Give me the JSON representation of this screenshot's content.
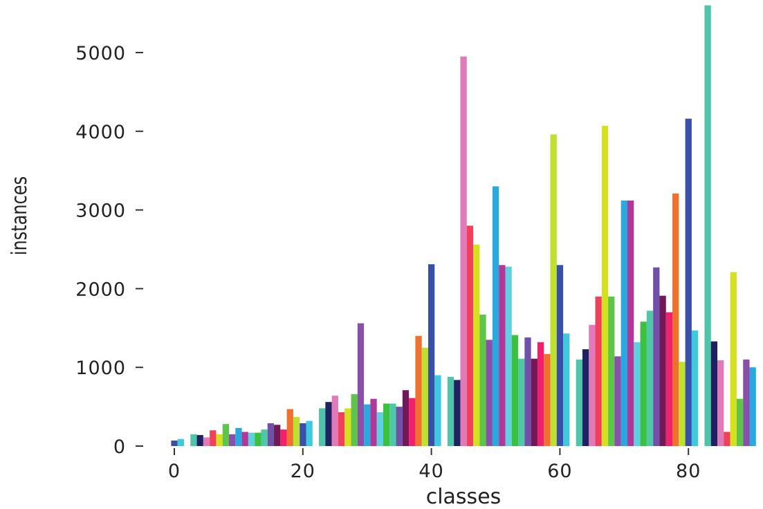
{
  "chart_data": {
    "type": "bar",
    "title": "",
    "xlabel": "classes",
    "ylabel": "instances",
    "xlim": [
      -1,
      91
    ],
    "ylim": [
      0,
      5600
    ],
    "xticks": [
      "0",
      "20",
      "40",
      "60",
      "80"
    ],
    "xtick_values": [
      0,
      20,
      40,
      60,
      80
    ],
    "yticks": [
      "0",
      "1000",
      "2000",
      "3000",
      "4000",
      "5000"
    ],
    "ytick_values": [
      0,
      1000,
      2000,
      3000,
      4000,
      5000
    ],
    "grid": false,
    "x": [
      0,
      1,
      2,
      3,
      4,
      5,
      6,
      7,
      8,
      9,
      10,
      11,
      12,
      13,
      14,
      15,
      16,
      17,
      18,
      19,
      20,
      21,
      22,
      23,
      24,
      25,
      26,
      27,
      28,
      29,
      30,
      31,
      32,
      33,
      34,
      35,
      36,
      37,
      38,
      39,
      40,
      41,
      42,
      43,
      44,
      45,
      46,
      47,
      48,
      49,
      50,
      51,
      52,
      53,
      54,
      55,
      56,
      57,
      58,
      59,
      60,
      61,
      62,
      63,
      64,
      65,
      66,
      67,
      68,
      69,
      70,
      71,
      72,
      73,
      74,
      75,
      76,
      77,
      78,
      79,
      80,
      81,
      82,
      83,
      84,
      85,
      86,
      87,
      88,
      89,
      90
    ],
    "values": [
      70,
      90,
      0,
      150,
      140,
      110,
      200,
      150,
      280,
      150,
      230,
      180,
      170,
      170,
      210,
      290,
      270,
      210,
      470,
      370,
      290,
      320,
      0,
      480,
      560,
      640,
      430,
      480,
      660,
      1560,
      530,
      600,
      430,
      540,
      540,
      500,
      710,
      610,
      1400,
      1250,
      2310,
      900,
      0,
      880,
      840,
      4950,
      2800,
      2560,
      1670,
      1350,
      3300,
      2300,
      2280,
      1410,
      1110,
      1380,
      1110,
      1320,
      1170,
      3960,
      2300,
      1430,
      0,
      1100,
      1230,
      1540,
      1900,
      4070,
      1900,
      1140,
      3120,
      3120,
      1320,
      1580,
      1720,
      2270,
      1910,
      1700,
      3210,
      1070,
      4160,
      1470,
      0,
      5600,
      1330,
      1090,
      180,
      2210,
      600,
      1100,
      1000
    ],
    "palette": [
      "#3a4fa8",
      "#3fc8e0",
      "#d0f0f0",
      "#4fc4a8",
      "#1f2260",
      "#e07ab8",
      "#f0405a",
      "#d4e020",
      "#5ec44a",
      "#8a4fa8",
      "#2aa8e0",
      "#b03898",
      "#60d0e0",
      "#3cc040",
      "#50c8a8",
      "#7050a8",
      "#701858",
      "#f0206a",
      "#f07030",
      "#c0e030"
    ]
  }
}
